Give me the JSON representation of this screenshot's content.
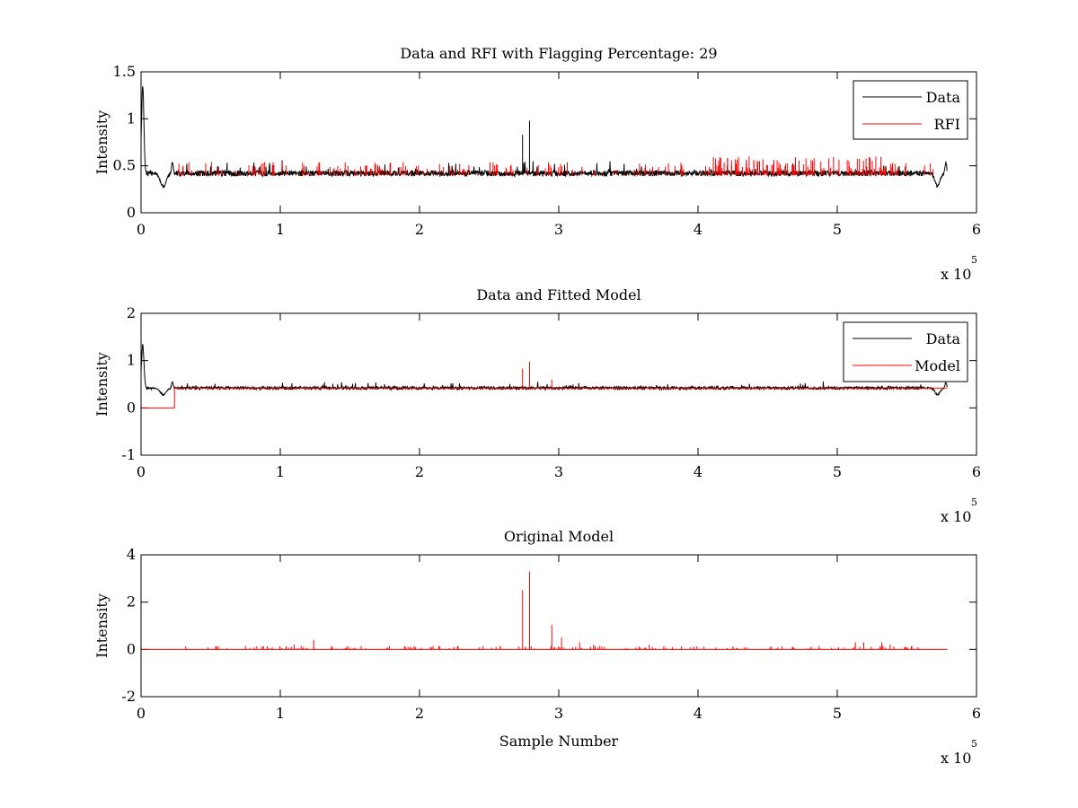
{
  "figure": {
    "background": "#ffffff",
    "colors": {
      "data": "#000000",
      "rfi": "#ff0000",
      "model": "#ff0000"
    }
  },
  "chart_data": [
    {
      "type": "line",
      "title": "Data and RFI with Flagging Percentage: 29",
      "xlabel": "",
      "ylabel": "Intensity",
      "xlim": [
        0,
        6
      ],
      "ylim": [
        0,
        1.5
      ],
      "x_scale_label": "x 10",
      "x_scale_exponent": "5",
      "xticks": [
        "0",
        "1",
        "2",
        "3",
        "4",
        "5",
        "6"
      ],
      "yticks": [
        "0",
        "0.5",
        "1",
        "1.5"
      ],
      "legend": {
        "placement": "top-right",
        "entries": [
          "Data",
          "RFI"
        ]
      },
      "grid": false,
      "series": [
        {
          "name": "Data",
          "color": "#000000",
          "baseline": 0.42,
          "features": [
            {
              "x": 0.01,
              "y": 1.35
            },
            {
              "x": 0.03,
              "y": 0.65
            },
            {
              "x": 0.15,
              "y": 0.28
            },
            {
              "x": 0.22,
              "y": 0.55
            },
            {
              "x": 2.74,
              "y": 0.83
            },
            {
              "x": 2.79,
              "y": 0.98
            },
            {
              "x": 5.72,
              "y": 0.28
            },
            {
              "x": 5.78,
              "y": 0.55
            }
          ],
          "x_end": 5.79
        },
        {
          "name": "RFI",
          "color": "#ff0000",
          "baseline": 0.42,
          "spike_max": 0.6,
          "dense_region": [
            4.05,
            5.35
          ]
        }
      ]
    },
    {
      "type": "line",
      "title": "Data and Fitted Model",
      "xlabel": "",
      "ylabel": "Intensity",
      "xlim": [
        0,
        6
      ],
      "ylim": [
        -1,
        2
      ],
      "x_scale_label": "x 10",
      "x_scale_exponent": "5",
      "xticks": [
        "0",
        "1",
        "2",
        "3",
        "4",
        "5",
        "6"
      ],
      "yticks": [
        "-1",
        "0",
        "1",
        "2"
      ],
      "legend": {
        "placement": "top-right",
        "entries": [
          "Data",
          "Model"
        ]
      },
      "grid": false,
      "series": [
        {
          "name": "Data",
          "color": "#000000",
          "baseline": 0.42,
          "features": [
            {
              "x": 0.01,
              "y": 1.35
            },
            {
              "x": 0.15,
              "y": 0.28
            },
            {
              "x": 0.22,
              "y": 0.55
            },
            {
              "x": 5.72,
              "y": 0.28
            },
            {
              "x": 5.78,
              "y": 0.55
            }
          ]
        },
        {
          "name": "Model",
          "color": "#ff0000",
          "step": [
            {
              "x": 0,
              "y": 0
            },
            {
              "x": 0.24,
              "y": 0
            },
            {
              "x": 0.24,
              "y": 0.42
            },
            {
              "x": 5.79,
              "y": 0.42
            }
          ],
          "spikes": [
            {
              "x": 2.74,
              "y": 0.83
            },
            {
              "x": 2.79,
              "y": 0.98
            },
            {
              "x": 2.95,
              "y": 0.6
            }
          ]
        }
      ]
    },
    {
      "type": "line",
      "title": "Original Model",
      "xlabel": "Sample Number",
      "ylabel": "Intensity",
      "xlim": [
        0,
        6
      ],
      "ylim": [
        -2,
        4
      ],
      "x_scale_label": "x 10",
      "x_scale_exponent": "5",
      "xticks": [
        "0",
        "1",
        "2",
        "3",
        "4",
        "5",
        "6"
      ],
      "yticks": [
        "-2",
        "0",
        "2",
        "4"
      ],
      "legend": null,
      "grid": false,
      "series": [
        {
          "name": "",
          "color": "#ff0000",
          "baseline": 0,
          "x_range": [
            0,
            5.79
          ],
          "spikes": [
            {
              "x": 1.1,
              "y": 0.2
            },
            {
              "x": 1.15,
              "y": 0.15
            },
            {
              "x": 1.24,
              "y": 0.4
            },
            {
              "x": 2.55,
              "y": 0.1
            },
            {
              "x": 2.74,
              "y": 2.5
            },
            {
              "x": 2.79,
              "y": 3.3
            },
            {
              "x": 2.95,
              "y": 1.05
            },
            {
              "x": 3.02,
              "y": 0.5
            },
            {
              "x": 3.15,
              "y": 0.3
            },
            {
              "x": 3.25,
              "y": 0.2
            },
            {
              "x": 3.65,
              "y": 0.2
            },
            {
              "x": 5.13,
              "y": 0.3
            },
            {
              "x": 5.19,
              "y": 0.3
            },
            {
              "x": 5.32,
              "y": 0.3
            },
            {
              "x": 5.38,
              "y": 0.2
            }
          ]
        }
      ]
    }
  ]
}
